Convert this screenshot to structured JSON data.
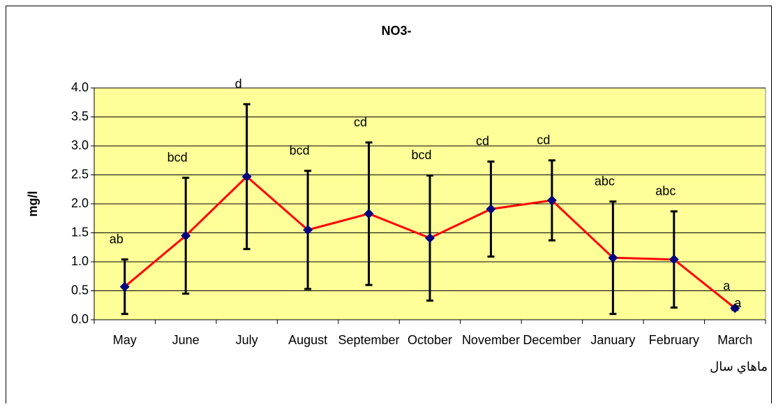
{
  "chart_data": {
    "type": "line",
    "title": "NO3-",
    "y_label": "mg/l",
    "x_label": "ماهاي سال",
    "categories": [
      "May",
      "June",
      "July",
      "August",
      "September",
      "October",
      "November",
      "December",
      "January",
      "February",
      "March"
    ],
    "series": [
      {
        "color": "#ff0000",
        "marker_color": "#000080",
        "error_color": "#000000",
        "values": [
          0.57,
          1.45,
          2.47,
          1.55,
          1.83,
          1.41,
          1.91,
          2.06,
          1.07,
          1.04,
          0.2
        ],
        "errors": [
          0.47,
          1.0,
          1.25,
          1.02,
          1.23,
          1.08,
          0.82,
          0.69,
          0.97,
          0.83,
          0.03
        ]
      }
    ],
    "group_labels": [
      "ab",
      "bcd",
      "d",
      "bcd",
      "cd",
      "bcd",
      "cd",
      "cd",
      "abc",
      "abc",
      "a"
    ],
    "annotations": [
      "a"
    ],
    "ylim": [
      0,
      4
    ],
    "yticks": [
      {
        "value": 0,
        "label": "0.0"
      },
      0.5,
      {
        "value": 1,
        "label": "1.0"
      },
      1.5,
      {
        "value": 2,
        "label": "2.0"
      },
      2.5,
      {
        "value": 3,
        "label": "3.0"
      },
      3.5,
      {
        "value": 4,
        "label": "4.0"
      }
    ],
    "grid": true,
    "plot_background": "#ffff99"
  }
}
